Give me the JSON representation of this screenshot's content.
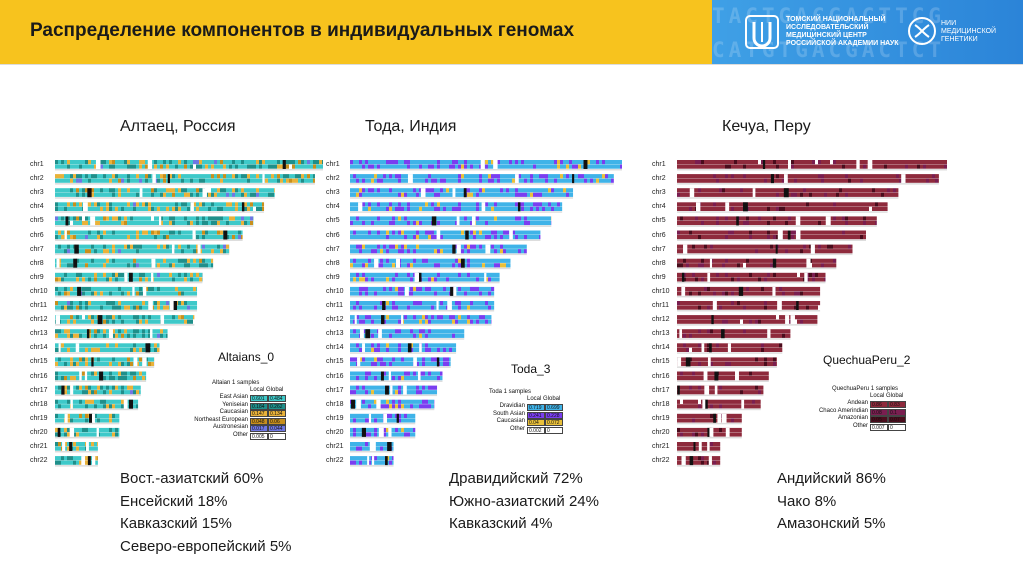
{
  "header": {
    "title": "Распределение компонентов в индивидуальных геномах",
    "bg_letters": [
      "TACTGACGACTTCG",
      "CATGTGACGACTCT"
    ],
    "logo1_text": [
      "ТОМСКИЙ НАЦИОНАЛЬНЫЙ",
      "ИССЛЕДОВАТЕЛЬСКИЙ",
      "МЕДИЦИНСКИЙ ЦЕНТР",
      "РОССИЙСКОЙ АКАДЕМИИ НАУК"
    ],
    "logo2_text": [
      "НИИ",
      "МЕДИЦИНСКОЙ",
      "ГЕНЕТИКИ"
    ]
  },
  "chr_labels": [
    "chr1",
    "chr2",
    "chr3",
    "chr4",
    "chr5",
    "chr6",
    "chr7",
    "chr8",
    "chr9",
    "chr10",
    "chr11",
    "chr12",
    "chr13",
    "chr14",
    "chr15",
    "chr16",
    "chr17",
    "chr18",
    "chr19",
    "chr20",
    "chr21",
    "chr22"
  ],
  "panels": [
    {
      "title": "Алтаец, Россия",
      "plot_name": "Altaians_0",
      "legend_title": "Altaian 1 samples",
      "legend_header": "Local Global",
      "base_color": "#3ec9c9",
      "rows": [
        {
          "name": "East Asian",
          "local": "0.601",
          "global": "0.484",
          "color": "#3ec9c9"
        },
        {
          "name": "Yeniseian",
          "local": "0.184",
          "global": "0.262",
          "color": "#1f8f8a"
        },
        {
          "name": "Caucasian",
          "local": "0.147",
          "global": "0.134",
          "color": "#e9b23a"
        },
        {
          "name": "Northeast European",
          "local": "0.048",
          "global": "0.06",
          "color": "#c88f1c"
        },
        {
          "name": "Austronesian",
          "local": "0.017",
          "global": "0.044",
          "color": "#6f77e3"
        },
        {
          "name": "Other",
          "local": "0.005",
          "global": "0",
          "color": "#ffffff"
        }
      ],
      "stats": [
        "Вост.-азиатский 60%",
        "Енсейский 18%",
        "Кавказский 15%",
        "Северо-европейский 5%"
      ]
    },
    {
      "title": "Тода, Индия",
      "plot_name": "Toda_3",
      "legend_title": "Toda 1 samples",
      "legend_header": "Local Global",
      "base_color": "#3fb3e8",
      "rows": [
        {
          "name": "Dravidian",
          "local": "0.719",
          "global": "0.699",
          "color": "#3fb3e8"
        },
        {
          "name": "South Asian",
          "local": "0.241",
          "global": "0.228",
          "color": "#7a3ef0"
        },
        {
          "name": "Caucasian",
          "local": "0.04",
          "global": "0.072",
          "color": "#e9c03a"
        },
        {
          "name": "Other",
          "local": "0.002",
          "global": "0",
          "color": "#ffffff"
        }
      ],
      "stats": [
        "Дравидийский 72%",
        "Южно-азиатский 24%",
        "Кавказский 4%"
      ]
    },
    {
      "title": "Кечуа, Перу",
      "plot_name": "QuechuaPeru_2",
      "legend_title": "QuechuaPeru 1 samples",
      "legend_header": "Local Global",
      "base_color": "#8e2a3c",
      "rows": [
        {
          "name": "Andean",
          "local": "0.86",
          "global": "0.83",
          "color": "#8e2a3c"
        },
        {
          "name": "Chaco Amerindian",
          "local": "0.08",
          "global": "0.1",
          "color": "#7a1e50"
        },
        {
          "name": "Amazonian",
          "local": "0.05",
          "global": "0.07",
          "color": "#4a0c1c"
        },
        {
          "name": "Other",
          "local": "0.007",
          "global": "0",
          "color": "#ffffff"
        }
      ],
      "stats": [
        "Андийский 86%",
        "Чако 8%",
        "Амазонский 5%"
      ]
    }
  ]
}
